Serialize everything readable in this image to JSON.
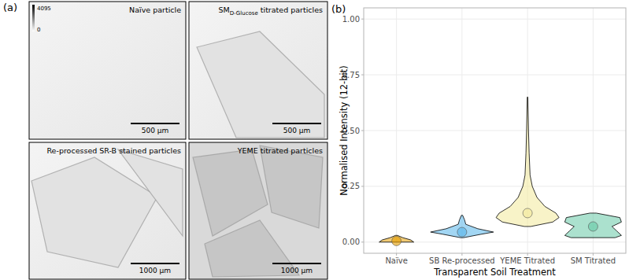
{
  "figure": {
    "panel_label": "(a)",
    "colorbar": {
      "max_label": "4095",
      "min_label": "0"
    },
    "images": [
      {
        "label": "Naïve particle",
        "scale_bar": "500 µm"
      },
      {
        "label": "SM",
        "label_sub": "D-Glucose",
        "label_rest": " titrated particles",
        "scale_bar": "500 µm"
      },
      {
        "label": "Re-processed SR-B stained particles",
        "scale_bar": "1000 µm"
      },
      {
        "label": "YEME titrated particles",
        "scale_bar": "1000 µm"
      }
    ]
  },
  "chart_data": {
    "type": "violin",
    "panel_label": "(b)",
    "y_label": "Normalised Intensity (12-bit)",
    "x_label": "Transparent Soil Treatment",
    "categories": [
      "Naïve",
      "SB Re-processed",
      "YEME Titrated",
      "SM Titrated"
    ],
    "violins": [
      {
        "color": "#E69F00",
        "mean": 0.005,
        "y_grid": [
          0,
          0.01,
          0.02,
          0.03
        ],
        "density": [
          0.55,
          0.45,
          0.2,
          0.03
        ]
      },
      {
        "color": "#56B4E9",
        "mean": 0.045,
        "y_grid": [
          0.02,
          0.035,
          0.045,
          0.06,
          0.08,
          0.1,
          0.12
        ],
        "density": [
          0.05,
          0.6,
          1,
          0.5,
          0.12,
          0.08,
          0.02
        ]
      },
      {
        "color": "#F3E99A",
        "mean": 0.13,
        "y_grid": [
          0.07,
          0.09,
          0.11,
          0.13,
          0.16,
          0.2,
          0.25,
          0.3,
          0.4,
          0.5,
          0.65
        ],
        "density": [
          0.1,
          0.8,
          1,
          0.9,
          0.55,
          0.3,
          0.15,
          0.08,
          0.05,
          0.03,
          0.01
        ]
      },
      {
        "color": "#66C9A6",
        "mean": 0.07,
        "y_grid": [
          0.02,
          0.03,
          0.05,
          0.07,
          0.09,
          0.11,
          0.13
        ],
        "density": [
          0.7,
          0.9,
          0.75,
          0.6,
          0.9,
          0.85,
          0.1
        ]
      }
    ],
    "ylim": [
      -0.05,
      1.05
    ],
    "yticks": [
      {
        "value": 0,
        "label": "0.00"
      },
      {
        "value": 0.25,
        "label": "0.25"
      },
      {
        "value": 0.5,
        "label": "0.50"
      },
      {
        "value": 0.75,
        "label": "0.75"
      },
      {
        "value": 1,
        "label": "1.00"
      }
    ],
    "grid": true
  }
}
